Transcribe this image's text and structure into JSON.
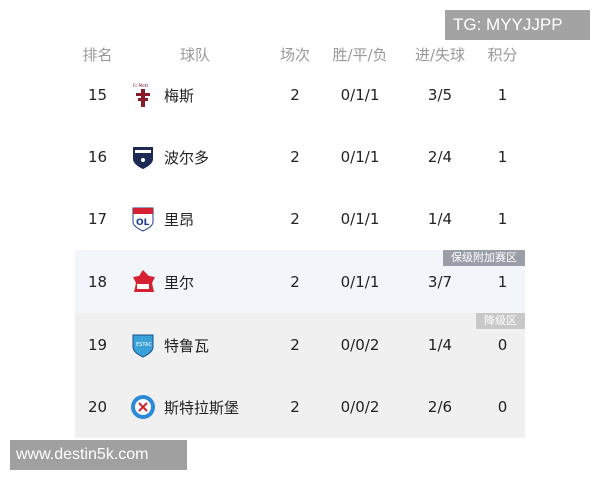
{
  "watermark_tg": "TG: MYYJJPP",
  "watermark_site": "www.destin5k.com",
  "headers": {
    "rank": "排名",
    "team": "球队",
    "played": "场次",
    "wdl": "胜/平/负",
    "goals": "进/失球",
    "points": "积分"
  },
  "zones": {
    "playoff": "保级附加赛区",
    "relegation": "降级区"
  },
  "colors": {
    "playoff_bg": "#f2f6fa",
    "relegation_bg": "#f0f0f0",
    "playoff_badge": "#9a9ea8",
    "relegation_badge": "#c8c8c8"
  },
  "rows": [
    {
      "rank": "15",
      "team": "梅斯",
      "logo": "metz-logo",
      "played": "2",
      "wdl": "0/1/1",
      "goals": "3/5",
      "points": "1"
    },
    {
      "rank": "16",
      "team": "波尔多",
      "logo": "bordeaux-logo",
      "played": "2",
      "wdl": "0/1/1",
      "goals": "2/4",
      "points": "1"
    },
    {
      "rank": "17",
      "team": "里昂",
      "logo": "lyon-logo",
      "played": "2",
      "wdl": "0/1/1",
      "goals": "1/4",
      "points": "1"
    },
    {
      "rank": "18",
      "team": "里尔",
      "logo": "lille-logo",
      "played": "2",
      "wdl": "0/1/1",
      "goals": "3/7",
      "points": "1"
    },
    {
      "rank": "19",
      "team": "特鲁瓦",
      "logo": "troyes-logo",
      "played": "2",
      "wdl": "0/0/2",
      "goals": "1/4",
      "points": "0"
    },
    {
      "rank": "20",
      "team": "斯特拉斯堡",
      "logo": "strasbourg-logo",
      "played": "2",
      "wdl": "0/0/2",
      "goals": "2/6",
      "points": "0"
    }
  ]
}
